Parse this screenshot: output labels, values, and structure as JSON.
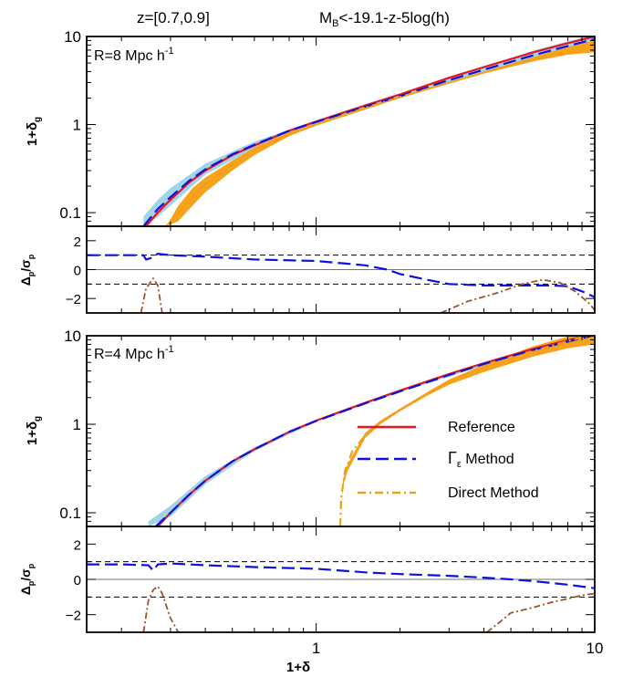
{
  "header": {
    "redshift": "z=[0.7,0.9]",
    "mag_prefix": "M",
    "mag_sub": "B",
    "mag_rest": "<-19.1-z-5log(h)"
  },
  "colors": {
    "reference": "#e8141e",
    "gamma": "#1010e0",
    "direct": "#f0a018",
    "direct_residual": "#a0522d",
    "band_gamma": "#9fd4ea",
    "band_direct": "#f7a21b"
  },
  "legend": {
    "reference": "Reference",
    "gamma_symbol": "Γ",
    "gamma_sub": "ε",
    "gamma_rest": " Method",
    "direct": "Direct Method"
  },
  "axes": {
    "xlabel": "1+δ",
    "ylabel_main_prefix": "1+δ",
    "ylabel_main_sub": "g",
    "ylabel_res_delta": "Δ",
    "ylabel_res_sigma": "σ",
    "ylabel_res_sub": "p",
    "x_ticklabels": [
      "1",
      "10"
    ],
    "main_ticklabels": [
      "0.1",
      "1",
      "10"
    ],
    "res_ticklabels": [
      "2",
      "0",
      "−2"
    ]
  },
  "chart_data": [
    {
      "type": "line",
      "panel": "top",
      "annotation_prefix": "R=8 Mpc h",
      "annotation_sup": "-1",
      "xscale": "log",
      "yscale": "log",
      "xlim": [
        0.15,
        10
      ],
      "ylim": [
        0.07,
        10
      ],
      "series": [
        {
          "key": "reference",
          "x": [
            0.245,
            0.27,
            0.3,
            0.35,
            0.4,
            0.5,
            0.6,
            0.8,
            1,
            1.5,
            2,
            3,
            4,
            6,
            8,
            10
          ],
          "y": [
            0.07,
            0.1,
            0.14,
            0.22,
            0.3,
            0.45,
            0.58,
            0.85,
            1.08,
            1.65,
            2.2,
            3.4,
            4.5,
            6.6,
            8.4,
            10
          ]
        },
        {
          "key": "gamma",
          "x": [
            0.24,
            0.27,
            0.3,
            0.35,
            0.4,
            0.5,
            0.6,
            0.8,
            1,
            1.5,
            2,
            3,
            4,
            6,
            8,
            10
          ],
          "y": [
            0.07,
            0.11,
            0.15,
            0.23,
            0.31,
            0.46,
            0.59,
            0.85,
            1.07,
            1.6,
            2.1,
            3.2,
            4.2,
            6.1,
            7.8,
            9.3
          ]
        },
        {
          "key": "direct",
          "x": [
            0.29,
            0.32,
            0.36,
            0.4,
            0.5,
            0.6,
            0.8,
            1,
            1.5,
            2,
            3,
            4,
            6,
            8,
            10
          ],
          "y": [
            0.07,
            0.1,
            0.15,
            0.21,
            0.35,
            0.5,
            0.78,
            1.0,
            1.55,
            2.05,
            3.0,
            3.9,
            5.5,
            6.8,
            7.8
          ]
        }
      ],
      "band_gamma": {
        "x": [
          0.24,
          0.27,
          0.3,
          0.4,
          0.6,
          1,
          2,
          4,
          6,
          8,
          10
        ],
        "lo": [
          0.07,
          0.09,
          0.12,
          0.27,
          0.54,
          1.02,
          2.0,
          3.9,
          5.4,
          6.4,
          7.0
        ],
        "hi": [
          0.09,
          0.14,
          0.19,
          0.36,
          0.64,
          1.12,
          2.25,
          4.5,
          6.9,
          8.8,
          10.5
        ]
      },
      "band_direct": {
        "x": [
          0.29,
          0.32,
          0.36,
          0.4,
          0.5,
          0.6,
          0.8,
          1,
          2,
          4,
          6,
          8,
          10
        ],
        "lo": [
          0.07,
          0.08,
          0.12,
          0.17,
          0.3,
          0.45,
          0.74,
          0.97,
          2.0,
          3.8,
          5.2,
          6.2,
          6.6
        ],
        "hi": [
          0.07,
          0.12,
          0.19,
          0.25,
          0.39,
          0.55,
          0.82,
          1.03,
          2.1,
          4.0,
          5.8,
          7.6,
          9.0
        ]
      }
    },
    {
      "type": "line",
      "panel": "top-residual",
      "xscale": "log",
      "xlim": [
        0.15,
        10
      ],
      "ylim": [
        -3,
        3
      ],
      "reference_lines": [
        1,
        0,
        -1
      ],
      "series": [
        {
          "key": "gamma",
          "x": [
            0.15,
            0.18,
            0.2,
            0.24,
            0.245,
            0.255,
            0.27,
            0.3,
            0.4,
            0.6,
            1,
            1.5,
            1.8,
            2,
            2.5,
            3,
            4,
            5,
            6,
            7,
            8,
            9,
            10
          ],
          "y": [
            1.0,
            1.0,
            1.0,
            1.0,
            0.7,
            0.8,
            1.1,
            1.0,
            0.9,
            0.7,
            0.6,
            0.3,
            0.0,
            -0.3,
            -0.7,
            -1.0,
            -1.1,
            -1.1,
            -1.1,
            -1.1,
            -1.15,
            -1.5,
            -1.9
          ]
        },
        {
          "key": "direct_residual",
          "x": [
            0.235,
            0.245,
            0.26,
            0.27,
            0.28
          ],
          "y": [
            -3.0,
            -1.3,
            -0.6,
            -1.1,
            -3.0
          ]
        },
        {
          "key": "direct_residual",
          "x": [
            2.8,
            3.5,
            4.5,
            5.5,
            6.5,
            7.5,
            8.5,
            9.5,
            10
          ],
          "y": [
            -3.0,
            -2.2,
            -1.6,
            -1.0,
            -0.7,
            -0.9,
            -1.5,
            -2.3,
            -2.8
          ]
        }
      ]
    },
    {
      "type": "line",
      "panel": "bottom",
      "annotation_prefix": "R=4 Mpc h",
      "annotation_sup": "-1",
      "xscale": "log",
      "yscale": "log",
      "xlim": [
        0.15,
        10
      ],
      "ylim": [
        0.07,
        10
      ],
      "series": [
        {
          "key": "reference",
          "x": [
            0.27,
            0.3,
            0.35,
            0.4,
            0.5,
            0.6,
            0.8,
            1,
            1.5,
            2,
            3,
            4,
            6,
            8,
            10
          ],
          "y": [
            0.07,
            0.1,
            0.16,
            0.23,
            0.38,
            0.52,
            0.82,
            1.1,
            1.75,
            2.4,
            3.7,
            4.9,
            7.1,
            8.9,
            10.5
          ]
        },
        {
          "key": "gamma",
          "x": [
            0.265,
            0.3,
            0.35,
            0.4,
            0.5,
            0.6,
            0.8,
            1,
            1.5,
            2,
            3,
            4,
            6,
            8,
            10
          ],
          "y": [
            0.07,
            0.1,
            0.16,
            0.23,
            0.38,
            0.52,
            0.82,
            1.09,
            1.72,
            2.35,
            3.6,
            4.8,
            6.9,
            8.6,
            10.2
          ]
        },
        {
          "key": "direct",
          "x": [
            1.22,
            1.23,
            1.27,
            1.35,
            1.5,
            1.7,
            2,
            2.5,
            3,
            4,
            6,
            8,
            10
          ],
          "y": [
            0.07,
            0.15,
            0.3,
            0.5,
            0.75,
            1.05,
            1.45,
            2.2,
            3.0,
            4.3,
            6.7,
            8.7,
            10.5
          ]
        }
      ],
      "band_gamma": {
        "x": [
          0.25,
          0.3,
          0.4,
          0.6,
          1,
          2,
          4,
          6,
          8,
          10
        ],
        "lo": [
          0.07,
          0.09,
          0.21,
          0.5,
          1.07,
          2.3,
          4.6,
          6.5,
          7.9,
          8.8
        ],
        "hi": [
          0.08,
          0.12,
          0.26,
          0.55,
          1.12,
          2.4,
          5.0,
          7.2,
          9.4,
          10.8
        ]
      },
      "band_direct": {
        "x": [
          1.22,
          1.25,
          1.3,
          1.5,
          1.7,
          2,
          2.5,
          3,
          4,
          6,
          8,
          10
        ],
        "lo": [
          0.07,
          0.2,
          0.3,
          0.7,
          1.0,
          1.4,
          2.1,
          2.8,
          3.9,
          5.8,
          7.2,
          8.0
        ],
        "hi": [
          0.07,
          0.24,
          0.36,
          0.8,
          1.1,
          1.5,
          2.3,
          3.2,
          4.7,
          7.6,
          9.8,
          11.5
        ]
      }
    },
    {
      "type": "line",
      "panel": "bottom-residual",
      "xscale": "log",
      "xlim": [
        0.15,
        10
      ],
      "ylim": [
        -3,
        3
      ],
      "reference_lines": [
        1,
        0,
        -1
      ],
      "series": [
        {
          "key": "gamma",
          "x": [
            0.15,
            0.2,
            0.25,
            0.26,
            0.27,
            0.3,
            0.4,
            0.6,
            1,
            1.5,
            2,
            3,
            4,
            5,
            6,
            8,
            10
          ],
          "y": [
            0.85,
            0.85,
            0.8,
            0.5,
            0.85,
            0.9,
            0.8,
            0.7,
            0.6,
            0.4,
            0.3,
            0.2,
            0.1,
            0.0,
            -0.1,
            -0.3,
            -0.5
          ]
        },
        {
          "key": "direct_residual",
          "x": [
            0.24,
            0.25,
            0.26,
            0.27,
            0.28,
            0.3,
            0.32
          ],
          "y": [
            -3.0,
            -1.2,
            -0.6,
            -0.4,
            -0.8,
            -2.2,
            -3.0
          ]
        },
        {
          "key": "direct_residual",
          "x": [
            4.1,
            4.5,
            5,
            6,
            7,
            8,
            9,
            10
          ],
          "y": [
            -3.0,
            -2.5,
            -1.9,
            -1.6,
            -1.3,
            -1.1,
            -0.9,
            -0.8
          ]
        }
      ]
    }
  ]
}
